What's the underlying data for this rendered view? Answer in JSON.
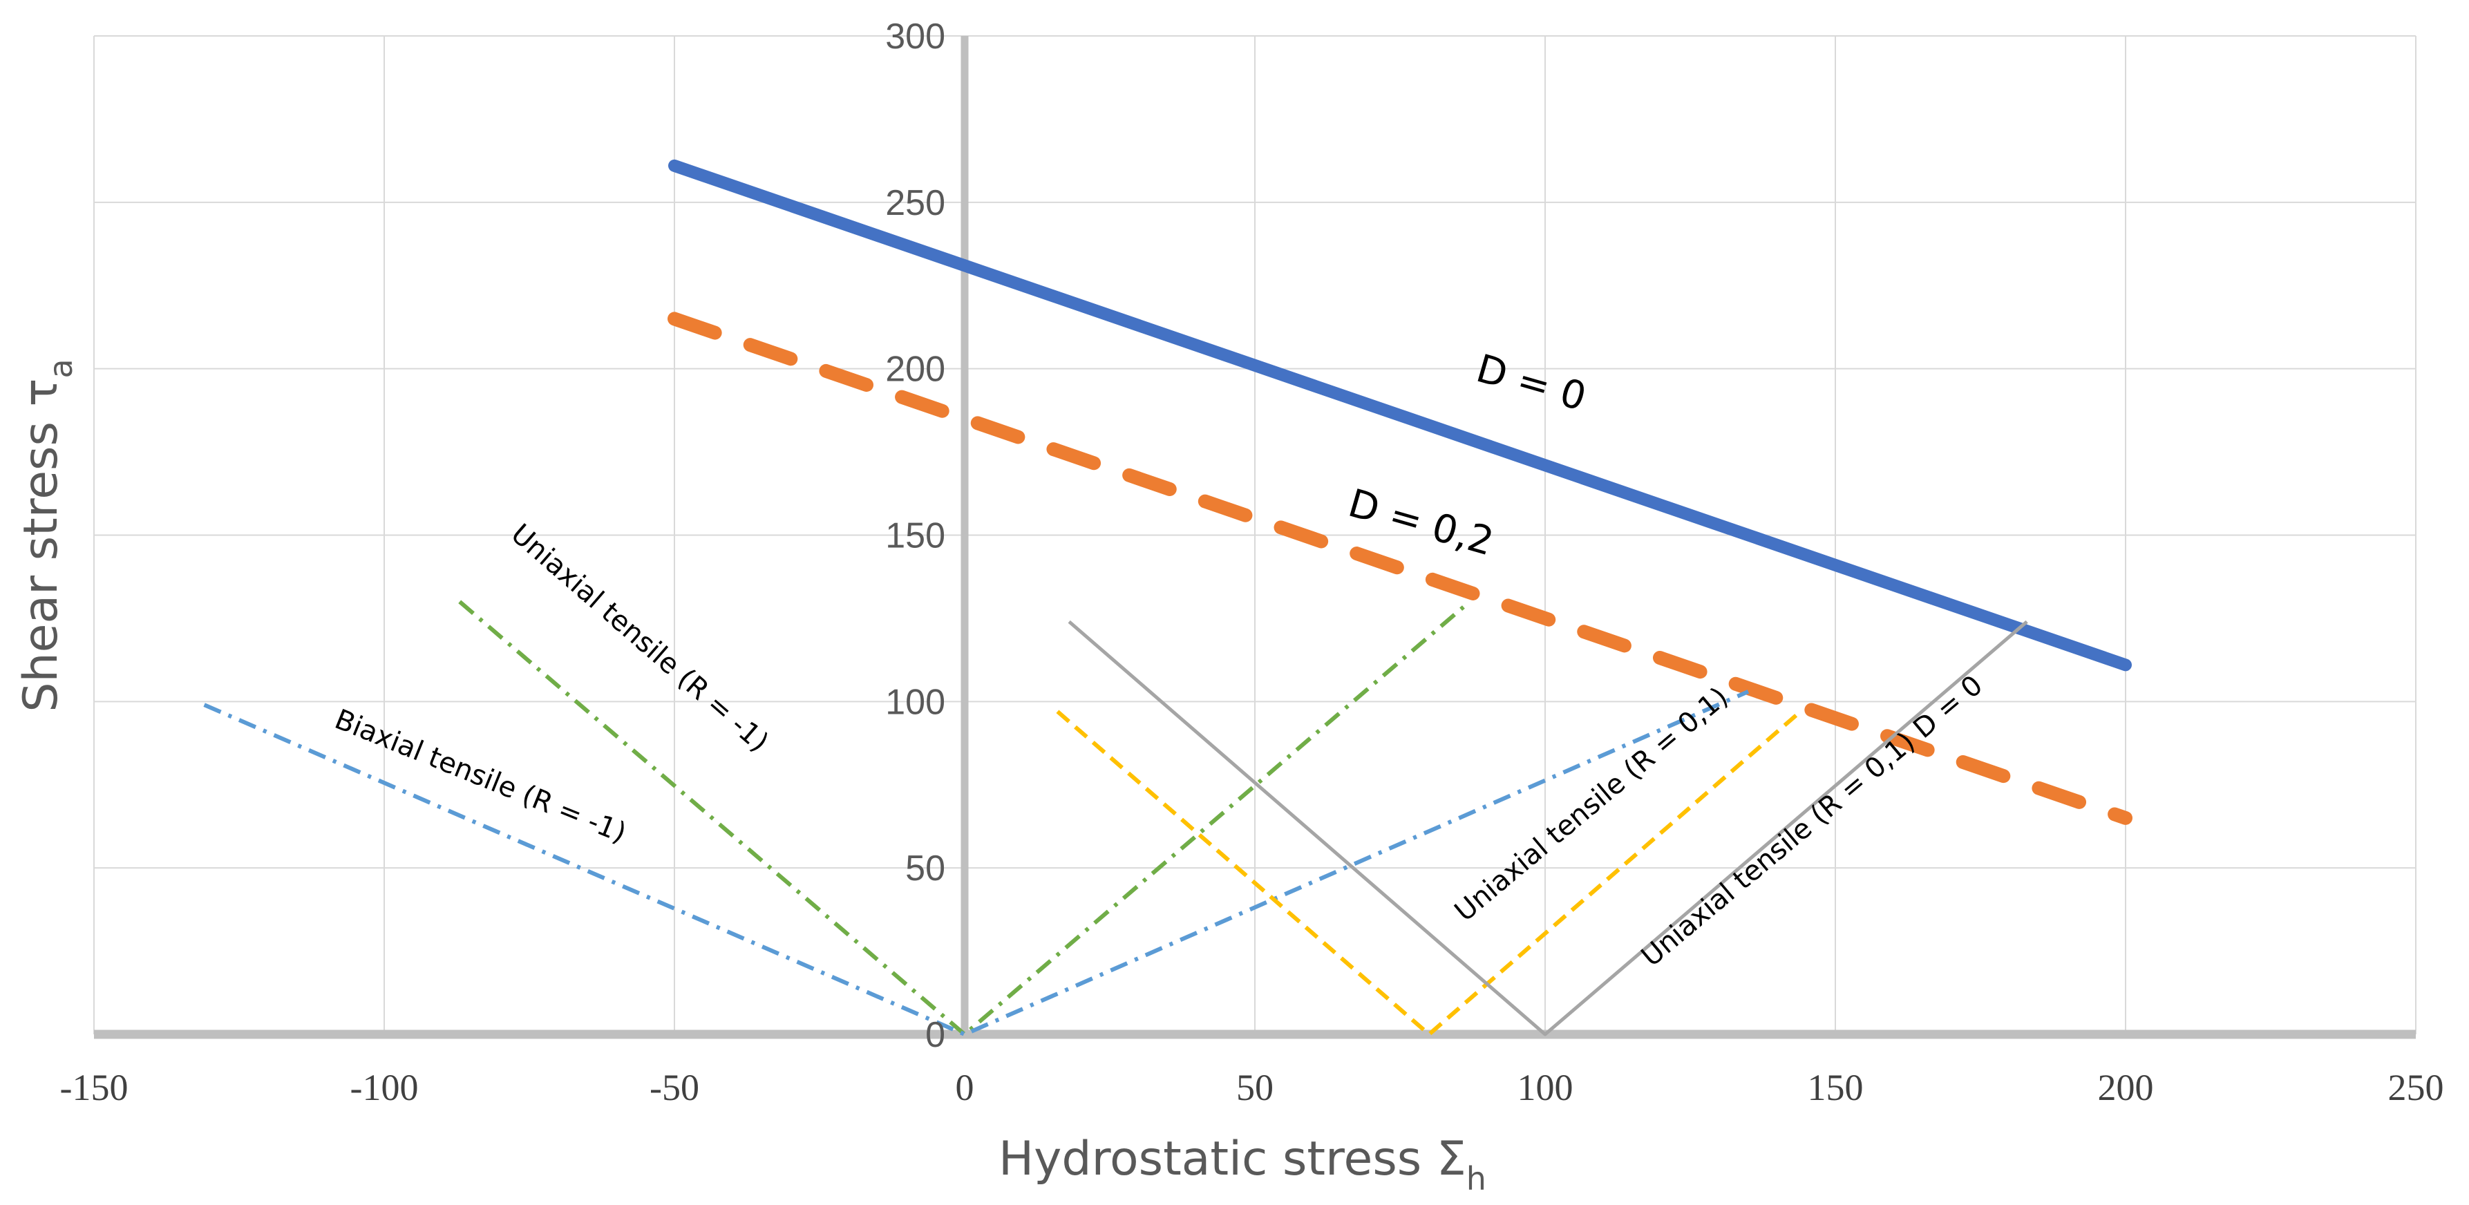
{
  "chart_data": {
    "type": "line",
    "title": "",
    "xlabel": {
      "base": "Hydrostatic stress Σ",
      "sub": "h"
    },
    "ylabel": {
      "base": "Shear stress τ",
      "sub": "a"
    },
    "xlim": [
      -150,
      250
    ],
    "ylim": [
      0,
      300
    ],
    "x_ticks": [
      -150,
      -100,
      -50,
      0,
      50,
      100,
      150,
      200,
      250
    ],
    "y_ticks": [
      0,
      50,
      100,
      150,
      200,
      250,
      300
    ],
    "x_tick_labels": [
      "-150",
      "-100",
      "-50",
      "0",
      "50",
      "100",
      "150",
      "200",
      "250"
    ],
    "y_tick_labels": [
      "0",
      "50",
      "100",
      "150",
      "200",
      "250",
      "300"
    ],
    "grid": true,
    "colors": {
      "blue_solid": "#4472C4",
      "orange_dash": "#ED7D31",
      "green_dashdot": "#70AD47",
      "lightblue_dashdot": "#5B9BD5",
      "yellow_dash": "#FFC000",
      "gray_solid": "#A5A5A5",
      "grid": "#D9D9D9",
      "axis": "#BFBFBF"
    },
    "series": [
      {
        "name": "D = 0",
        "style": "solid-thick",
        "color": "blue_solid",
        "x": [
          -50,
          200
        ],
        "y": [
          261,
          111
        ]
      },
      {
        "name": "D = 0,2",
        "style": "dash-thick",
        "color": "orange_dash",
        "x": [
          -50,
          200
        ],
        "y": [
          215,
          65
        ]
      },
      {
        "name": "Uniaxial tensile (R = -1)",
        "style": "dashdot",
        "color": "green_dashdot",
        "x": [
          -87,
          0,
          87
        ],
        "y": [
          130,
          0,
          130
        ]
      },
      {
        "name": "Biaxial tensile (R = -1)",
        "style": "dashdot",
        "color": "lightblue_dashdot",
        "x": [
          -131,
          0,
          135
        ],
        "y": [
          99,
          0,
          103
        ]
      },
      {
        "name": "Uniaxial tensile (R = 0,1)",
        "style": "dash",
        "color": "yellow_dash",
        "x": [
          16,
          80,
          144
        ],
        "y": [
          97,
          0,
          97
        ]
      },
      {
        "name": "Uniaxial tensile (R = 0,1) D = 0",
        "style": "solid-thin",
        "color": "gray_solid",
        "x": [
          18,
          100,
          183
        ],
        "y": [
          124,
          0,
          124
        ]
      }
    ],
    "annotations": [
      {
        "id": "d0",
        "text": "D = 0",
        "x": 97,
        "y": 192,
        "angle": 16,
        "kind": "big"
      },
      {
        "id": "d02",
        "text": "D = 0,2",
        "x": 78,
        "y": 150,
        "angle": 16,
        "kind": "big"
      },
      {
        "id": "uniR1",
        "text": "Uniaxial tensile (R = -1)",
        "x": -57,
        "y": 117,
        "angle": 41,
        "kind": "small"
      },
      {
        "id": "biR1",
        "text": "Biaxial tensile (R = -1)",
        "x": -84,
        "y": 75,
        "angle": 22,
        "kind": "small"
      },
      {
        "id": "uniR01",
        "text": "Uniaxial tensile (R = 0,1)",
        "x": 109,
        "y": 67,
        "angle": -40,
        "kind": "small"
      },
      {
        "id": "uniR01D0",
        "text": "Uniaxial tensile (R = 0,1) D = 0",
        "x": 147,
        "y": 62,
        "angle": -40,
        "kind": "small"
      }
    ]
  }
}
